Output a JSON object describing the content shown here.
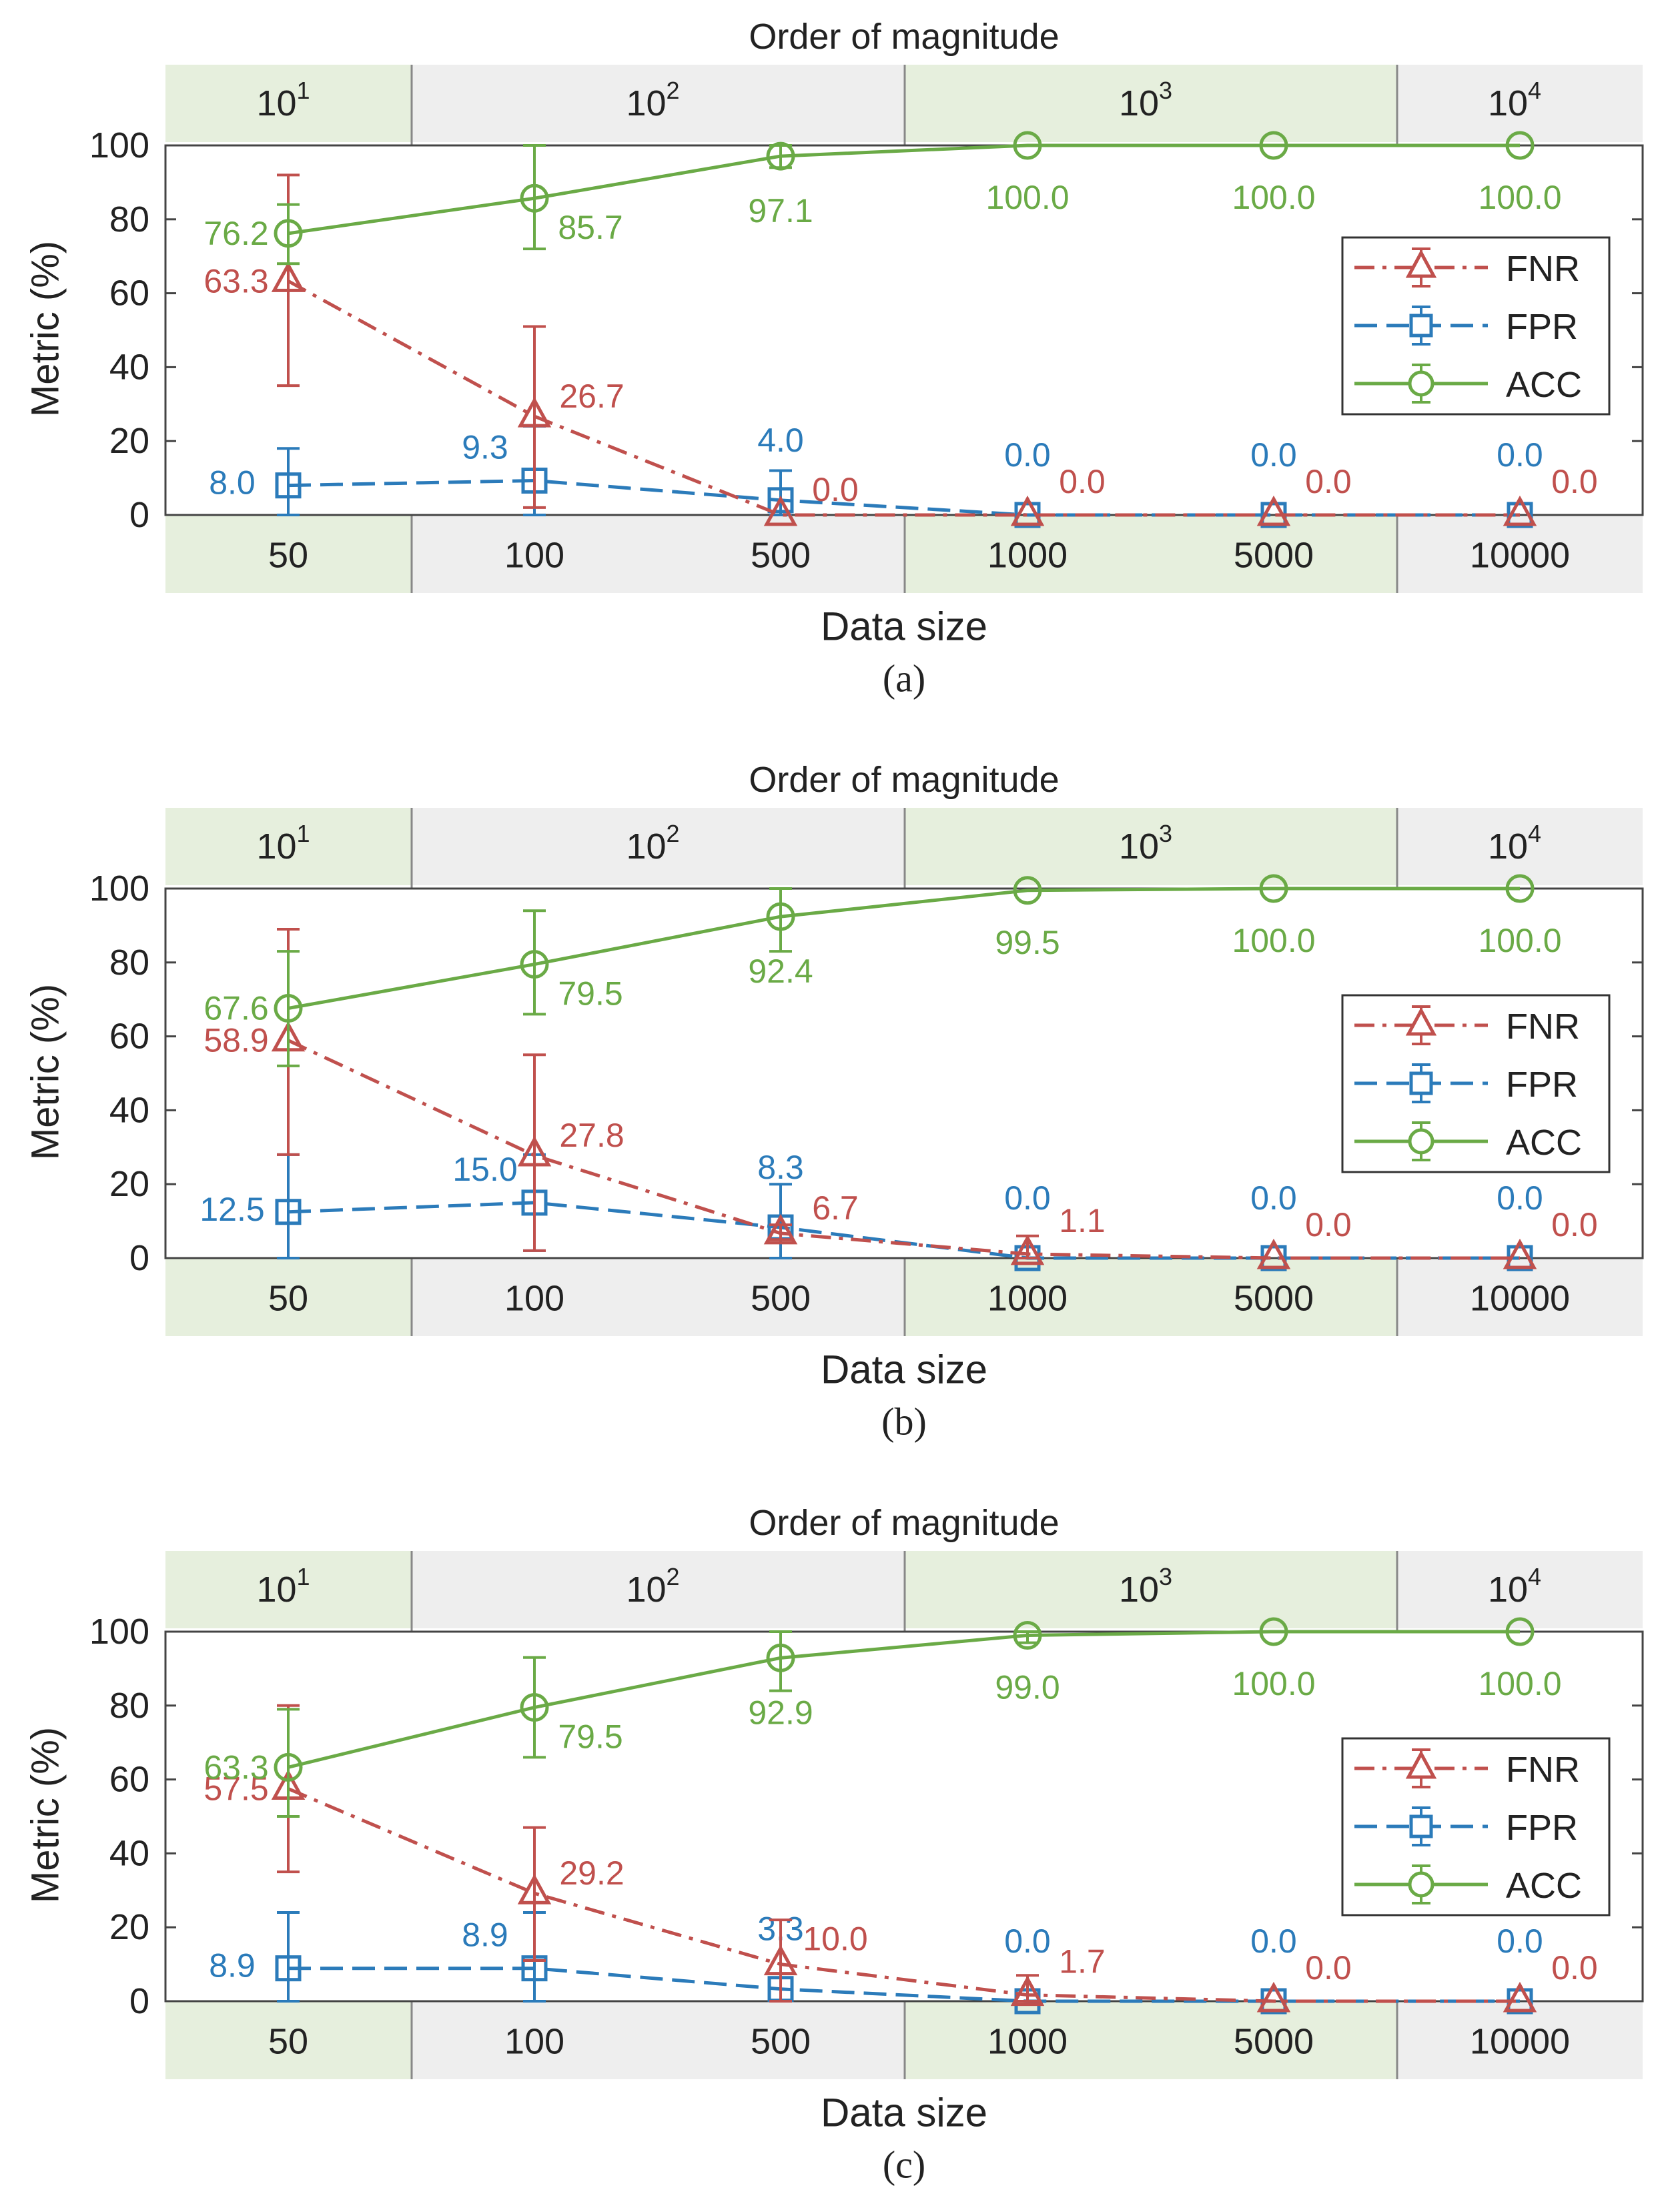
{
  "colors": {
    "fnr": "#c0504d",
    "fpr": "#2b7bba",
    "acc": "#6aaa46",
    "band_green": "#e6efdd",
    "band_gray": "#eeeeee",
    "frame": "#444444"
  },
  "chart_data": [
    {
      "type": "line",
      "panel_label": "(a)",
      "title": "Order of magnitude",
      "xlabel": "Data size",
      "ylabel": "Metric (%)",
      "ylim": [
        0,
        100
      ],
      "y_ticks": [
        "0",
        "20",
        "40",
        "60",
        "80",
        "100"
      ],
      "categories": [
        "50",
        "100",
        "500",
        "1000",
        "5000",
        "10000"
      ],
      "magnitude_labels": [
        {
          "base": "10",
          "exp": "1"
        },
        {
          "base": "10",
          "exp": "2"
        },
        {
          "base": "10",
          "exp": "3"
        },
        {
          "base": "10",
          "exp": "4"
        }
      ],
      "legend_position": "right",
      "series": [
        {
          "name": "FNR",
          "key": "fnr",
          "marker": "triangle",
          "dash": "dashdot",
          "values": [
            63.3,
            26.7,
            0.0,
            0.0,
            0.0,
            0.0
          ],
          "labels": [
            "63.3",
            "26.7",
            "0.0",
            "0.0",
            "0.0",
            "0.0"
          ],
          "error": [
            [
              35,
              92
            ],
            [
              2,
              51
            ],
            null,
            null,
            null,
            null
          ]
        },
        {
          "name": "FPR",
          "key": "fpr",
          "marker": "square",
          "dash": "dashed",
          "values": [
            8.0,
            9.3,
            4.0,
            0.0,
            0.0,
            0.0
          ],
          "labels": [
            "8.0",
            "9.3",
            "4.0",
            "0.0",
            "0.0",
            "0.0"
          ],
          "error": [
            [
              0,
              18
            ],
            [
              0,
              24
            ],
            [
              0,
              12
            ],
            null,
            null,
            null
          ]
        },
        {
          "name": "ACC",
          "key": "acc",
          "marker": "circle",
          "dash": "solid",
          "values": [
            76.2,
            85.7,
            97.1,
            100.0,
            100.0,
            100.0
          ],
          "labels": [
            "76.2",
            "85.7",
            "97.1",
            "100.0",
            "100.0",
            "100.0"
          ],
          "error": [
            [
              68,
              84
            ],
            [
              72,
              100
            ],
            [
              94,
              100
            ],
            null,
            null,
            null
          ]
        }
      ]
    },
    {
      "type": "line",
      "panel_label": "(b)",
      "title": "Order of magnitude",
      "xlabel": "Data size",
      "ylabel": "Metric (%)",
      "ylim": [
        0,
        100
      ],
      "y_ticks": [
        "0",
        "20",
        "40",
        "60",
        "80",
        "100"
      ],
      "categories": [
        "50",
        "100",
        "500",
        "1000",
        "5000",
        "10000"
      ],
      "magnitude_labels": [
        {
          "base": "10",
          "exp": "1"
        },
        {
          "base": "10",
          "exp": "2"
        },
        {
          "base": "10",
          "exp": "3"
        },
        {
          "base": "10",
          "exp": "4"
        }
      ],
      "legend_position": "right",
      "series": [
        {
          "name": "FNR",
          "key": "fnr",
          "marker": "triangle",
          "dash": "dashdot",
          "values": [
            58.9,
            27.8,
            6.7,
            1.1,
            0.0,
            0.0
          ],
          "labels": [
            "58.9",
            "27.8",
            "6.7",
            "1.1",
            "0.0",
            "0.0"
          ],
          "error": [
            [
              28,
              89
            ],
            [
              2,
              55
            ],
            [
              5,
              9
            ],
            [
              0,
              6
            ],
            null,
            null
          ]
        },
        {
          "name": "FPR",
          "key": "fpr",
          "marker": "square",
          "dash": "dashed",
          "values": [
            12.5,
            15.0,
            8.3,
            0.0,
            0.0,
            0.0
          ],
          "labels": [
            "12.5",
            "15.0",
            "8.3",
            "0.0",
            "0.0",
            "0.0"
          ],
          "error": [
            [
              0,
              28
            ],
            [
              2,
              28
            ],
            [
              0,
              20
            ],
            null,
            null,
            null
          ]
        },
        {
          "name": "ACC",
          "key": "acc",
          "marker": "circle",
          "dash": "solid",
          "values": [
            67.6,
            79.5,
            92.4,
            99.5,
            100.0,
            100.0
          ],
          "labels": [
            "67.6",
            "79.5",
            "92.4",
            "99.5",
            "100.0",
            "100.0"
          ],
          "error": [
            [
              52,
              83
            ],
            [
              66,
              94
            ],
            [
              83,
              100
            ],
            null,
            null,
            null
          ]
        }
      ]
    },
    {
      "type": "line",
      "panel_label": "(c)",
      "title": "Order of magnitude",
      "xlabel": "Data size",
      "ylabel": "Metric (%)",
      "ylim": [
        0,
        100
      ],
      "y_ticks": [
        "0",
        "20",
        "40",
        "60",
        "80",
        "100"
      ],
      "categories": [
        "50",
        "100",
        "500",
        "1000",
        "5000",
        "10000"
      ],
      "magnitude_labels": [
        {
          "base": "10",
          "exp": "1"
        },
        {
          "base": "10",
          "exp": "2"
        },
        {
          "base": "10",
          "exp": "3"
        },
        {
          "base": "10",
          "exp": "4"
        }
      ],
      "legend_position": "right",
      "series": [
        {
          "name": "FNR",
          "key": "fnr",
          "marker": "triangle",
          "dash": "dashdot",
          "values": [
            57.5,
            29.2,
            10.0,
            1.7,
            0.0,
            0.0
          ],
          "labels": [
            "57.5",
            "29.2",
            "10.0",
            "1.7",
            "0.0",
            "0.0"
          ],
          "error": [
            [
              35,
              80
            ],
            [
              11,
              47
            ],
            [
              0,
              22
            ],
            [
              0,
              7
            ],
            null,
            null
          ]
        },
        {
          "name": "FPR",
          "key": "fpr",
          "marker": "square",
          "dash": "dashed",
          "values": [
            8.9,
            8.9,
            3.3,
            0.0,
            0.0,
            0.0
          ],
          "labels": [
            "8.9",
            "8.9",
            "3.3",
            "0.0",
            "0.0",
            "0.0"
          ],
          "error": [
            [
              0,
              24
            ],
            [
              0,
              24
            ],
            null,
            null,
            null,
            null
          ]
        },
        {
          "name": "ACC",
          "key": "acc",
          "marker": "circle",
          "dash": "solid",
          "values": [
            63.3,
            79.5,
            92.9,
            99.0,
            100.0,
            100.0
          ],
          "labels": [
            "63.3",
            "79.5",
            "92.9",
            "99.0",
            "100.0",
            "100.0"
          ],
          "error": [
            [
              50,
              79
            ],
            [
              66,
              93
            ],
            [
              84,
              100
            ],
            [
              97,
              100
            ],
            null,
            null
          ]
        }
      ]
    }
  ]
}
